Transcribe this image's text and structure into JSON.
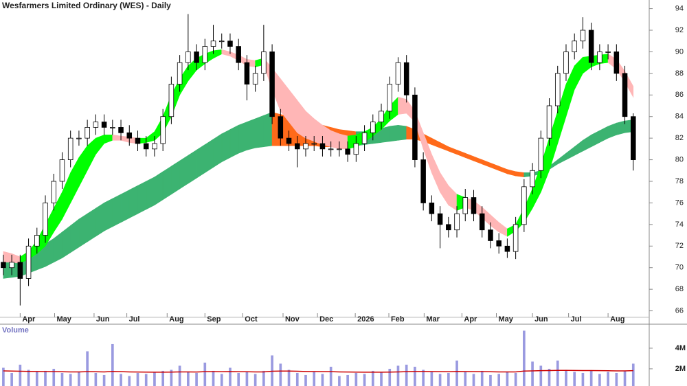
{
  "chart_data": [
    {
      "type": "candlestick",
      "title": "Wesfarmers Limited Ordinary (WES) - Daily",
      "xlim": [
        -0.4,
        76.9
      ],
      "ylim": [
        65.4,
        94.8
      ],
      "yticks": [
        66,
        68,
        70,
        72,
        74,
        76,
        78,
        80,
        82,
        84,
        86,
        88,
        90,
        92,
        94
      ],
      "xticks": [
        {
          "value": 2.0,
          "label": "Apr"
        },
        {
          "value": 6.1,
          "label": "May"
        },
        {
          "value": 10.8,
          "label": "Jun"
        },
        {
          "value": 14.7,
          "label": "Jul"
        },
        {
          "value": 19.5,
          "label": "Aug"
        },
        {
          "value": 24.0,
          "label": "Sep"
        },
        {
          "value": 28.5,
          "label": "Oct"
        },
        {
          "value": 33.3,
          "label": "Nov"
        },
        {
          "value": 37.4,
          "label": "Dec"
        },
        {
          "value": 41.9,
          "label": "2026"
        },
        {
          "value": 45.9,
          "label": "Feb"
        },
        {
          "value": 50.1,
          "label": "Mar"
        },
        {
          "value": 54.6,
          "label": "Apr"
        },
        {
          "value": 58.7,
          "label": "May"
        },
        {
          "value": 63.0,
          "label": "Jun"
        },
        {
          "value": 67.3,
          "label": "Jul"
        },
        {
          "value": 72.0,
          "label": "Aug"
        }
      ],
      "up_color": "#ffffff",
      "down_color": "#000000",
      "outline_color": "#000000",
      "open": [
        70.5,
        70,
        70.5,
        69,
        72,
        73,
        76,
        78,
        80,
        82,
        82,
        83,
        83.5,
        83,
        83,
        82.5,
        82,
        81.5,
        81,
        81.5,
        84,
        87,
        89,
        90,
        89,
        90.5,
        91,
        91,
        90.5,
        89,
        87,
        88,
        90,
        84,
        82,
        81.5,
        81,
        81.5,
        81.5,
        81,
        81,
        81,
        80.5,
        81.5,
        82.5,
        83.5,
        84.5,
        87,
        89,
        86,
        80,
        76,
        75,
        74,
        73.5,
        75,
        76.5,
        75,
        73.5,
        72.5,
        72,
        71.5,
        74,
        77.5,
        79,
        82,
        85,
        88,
        90,
        91,
        92,
        89,
        90,
        90,
        88,
        84
      ],
      "high": [
        71.2,
        71.2,
        71.2,
        72.7,
        73.7,
        76.7,
        78.7,
        80.7,
        82.7,
        82.7,
        83.7,
        84.2,
        84.2,
        83.7,
        83.7,
        83.2,
        82.7,
        82.2,
        82.2,
        84.7,
        87.7,
        89.7,
        93.5,
        90.7,
        91.2,
        92.5,
        91.7,
        91.7,
        91.2,
        89.7,
        88.7,
        92.5,
        90.7,
        84.7,
        82.7,
        82.2,
        82.2,
        82.2,
        82.2,
        81.7,
        81.7,
        81.7,
        82.2,
        83.2,
        84.2,
        85.2,
        87.7,
        89.5,
        89.7,
        86.7,
        80.7,
        76.7,
        75.7,
        74.7,
        75.7,
        77.3,
        77.2,
        75.7,
        74.2,
        73.2,
        72.7,
        74.7,
        78.2,
        79.7,
        82.7,
        85.7,
        88.7,
        90.7,
        91.7,
        93.2,
        92.7,
        90.7,
        90.7,
        90.7,
        88.7,
        84.3
      ],
      "low": [
        69.3,
        69.3,
        66.5,
        68.3,
        71.3,
        72.3,
        75.3,
        77.3,
        79.3,
        81.3,
        81.3,
        82.3,
        82.3,
        82.3,
        81.8,
        81.3,
        80.8,
        80.3,
        80.3,
        80.8,
        83.3,
        86.3,
        88.3,
        88.3,
        88.3,
        89.8,
        90.3,
        89.8,
        88.3,
        85.5,
        86.3,
        87.3,
        83.3,
        81.3,
        80.8,
        79.3,
        80.3,
        80.8,
        80.3,
        80.3,
        80.3,
        79.8,
        79.8,
        80.8,
        81.8,
        82.8,
        83.8,
        86.3,
        85.3,
        79.3,
        75.3,
        74.3,
        71.8,
        72.8,
        72.8,
        74.3,
        74.3,
        72.8,
        71.8,
        71.3,
        70.9,
        70.8,
        73.3,
        76.8,
        78.3,
        81.3,
        84.3,
        87.3,
        89.3,
        90.3,
        88.3,
        88.3,
        89.3,
        87.3,
        83.3,
        79
      ],
      "close": [
        70,
        70.5,
        69,
        72,
        73,
        76,
        78,
        80,
        82,
        82,
        83,
        83.5,
        83,
        83,
        82.5,
        82,
        81.5,
        81,
        81.5,
        84,
        87,
        89,
        90,
        89,
        90.5,
        91,
        91,
        90.5,
        89,
        87,
        88,
        90,
        84,
        82,
        81.5,
        81,
        81.5,
        81.5,
        81,
        81,
        81,
        80.5,
        81.5,
        82.5,
        83.5,
        84.5,
        87,
        89,
        86,
        80,
        76,
        75,
        74,
        73.5,
        75,
        76.5,
        75,
        73.5,
        72.5,
        72,
        71.5,
        74,
        77.5,
        79,
        82,
        85,
        88,
        90,
        91,
        92,
        89,
        90,
        90,
        88,
        84,
        80
      ],
      "ribbons": [
        {
          "color_up": "#3cb371",
          "color_down": "#ff6a1a",
          "upper": [
            70.8,
            70.9,
            71,
            71.3,
            71.7,
            72.2,
            72.7,
            73.3,
            73.9,
            74.5,
            75,
            75.5,
            76,
            76.4,
            76.8,
            77.2,
            77.6,
            78,
            78.4,
            78.9,
            79.4,
            79.9,
            80.4,
            80.9,
            81.4,
            81.9,
            82.4,
            82.8,
            83.2,
            83.5,
            83.8,
            84.1,
            84.4,
            84.2,
            84,
            83.8,
            83.6,
            83.4,
            83.2,
            83,
            82.8,
            82.7,
            82.6,
            82.6,
            82.7,
            82.9,
            83.1,
            83.2,
            83.1,
            82.8,
            82.4,
            82,
            81.6,
            81.2,
            80.9,
            80.6,
            80.3,
            80,
            79.7,
            79.4,
            79.1,
            78.9,
            78.8,
            78.8,
            79,
            79.4,
            80,
            80.6,
            81.2,
            81.8,
            82.3,
            82.7,
            83.1,
            83.4,
            83.6,
            83.7
          ],
          "lower": [
            69,
            69.1,
            69.2,
            69.5,
            69.8,
            70.1,
            70.5,
            70.9,
            71.4,
            71.9,
            72.4,
            72.9,
            73.4,
            73.8,
            74.2,
            74.6,
            75,
            75.4,
            75.8,
            76.3,
            76.8,
            77.3,
            77.8,
            78.3,
            78.8,
            79.3,
            79.8,
            80.2,
            80.6,
            80.9,
            81.1,
            81.2,
            81.3,
            81.3,
            81.3,
            81.3,
            81.3,
            81.3,
            81.2,
            81.2,
            81.2,
            81.2,
            81.3,
            81.4,
            81.5,
            81.6,
            81.7,
            81.8,
            81.9,
            81.9,
            81.7,
            81.4,
            81.1,
            80.8,
            80.5,
            80.2,
            79.9,
            79.6,
            79.3,
            79,
            78.7,
            78.5,
            78.4,
            78.5,
            78.7,
            79.1,
            79.6,
            80,
            80.4,
            80.8,
            81.2,
            81.6,
            82,
            82.3,
            82.5,
            82.6
          ]
        },
        {
          "color_up": "#00ff00",
          "color_down": "#ffb6b6",
          "upper": [
            71.5,
            71.3,
            71,
            71.5,
            72.5,
            74,
            75.5,
            77,
            78.8,
            80.2,
            81.3,
            82,
            82.3,
            82.3,
            82.2,
            82.1,
            82,
            82,
            82.6,
            84,
            86,
            87.5,
            88.7,
            89.4,
            89.8,
            90.1,
            90.2,
            90,
            89.7,
            89.3,
            89.2,
            89.4,
            88.5,
            87.5,
            86.5,
            85.5,
            84.5,
            83.8,
            83.2,
            82.7,
            82.4,
            82.2,
            82.3,
            82.6,
            83,
            83.8,
            85,
            85.8,
            85.6,
            84.5,
            82.5,
            80.5,
            78.8,
            77.6,
            76.8,
            76.5,
            76.2,
            75.6,
            74.9,
            74.2,
            73.6,
            74,
            75.5,
            77.3,
            79.5,
            82,
            84.5,
            87,
            88.7,
            89.5,
            89.6,
            89.7,
            89.8,
            89.3,
            88.2,
            86.8
          ],
          "lower": [
            70.5,
            70.5,
            70.4,
            70.8,
            71.3,
            72,
            73.3,
            74.5,
            76,
            77.5,
            79,
            80.5,
            81.5,
            81.8,
            81.8,
            81.6,
            81.5,
            81.6,
            81.8,
            82.5,
            84,
            86,
            87.3,
            88.3,
            88.9,
            89.4,
            89.8,
            89.6,
            89.2,
            88.7,
            88.6,
            88.8,
            86.5,
            84.5,
            83.5,
            82.5,
            82,
            81.7,
            81.4,
            81.2,
            81,
            81,
            81.2,
            81.6,
            82.2,
            82.8,
            83.6,
            84.2,
            84.3,
            83.5,
            81,
            78.8,
            77,
            75.8,
            75.3,
            75.6,
            75.3,
            74.6,
            73.9,
            73.3,
            72.9,
            73.4,
            74.2,
            75.5,
            77,
            79,
            81.5,
            84,
            86.5,
            88,
            88.6,
            88.9,
            89,
            88.4,
            87.2,
            85.8
          ]
        }
      ]
    },
    {
      "type": "bar",
      "title": "Volume",
      "color": "#9a9ae0",
      "xlim": [
        -0.4,
        76.9
      ],
      "ylim": [
        330000,
        6330000
      ],
      "yticks": [
        {
          "value": 2000000,
          "label": "2M"
        },
        {
          "value": 4000000,
          "label": "4M"
        }
      ],
      "values": [
        2100000,
        1600000,
        2400000,
        1900000,
        1700000,
        1800000,
        2000000,
        1600000,
        1500000,
        1700000,
        3700000,
        1600000,
        1400000,
        4400000,
        1500000,
        1300000,
        1600000,
        1500000,
        1700000,
        1800000,
        1900000,
        2300000,
        1700000,
        1600000,
        2600000,
        1800000,
        1500000,
        2100000,
        1600000,
        1700000,
        1500000,
        1800000,
        3300000,
        2500000,
        1900000,
        1600000,
        1400000,
        1700000,
        1500000,
        2200000,
        1300000,
        1400000,
        1600000,
        1500000,
        1800000,
        1700000,
        2000000,
        2300000,
        2400000,
        2200000,
        1900000,
        1700000,
        1500000,
        1600000,
        2800000,
        1700000,
        1500000,
        1800000,
        1400000,
        1500000,
        1700000,
        1600000,
        5700000,
        2700000,
        2300000,
        2000000,
        2800000,
        1900000,
        1700000,
        1600000,
        1800000,
        1500000,
        1700000,
        1600000,
        1800000,
        2500000
      ],
      "average": {
        "color": "#cc0000",
        "values": [
          1800000,
          1780000,
          1760000,
          1750000,
          1740000,
          1730000,
          1720000,
          1710000,
          1700000,
          1700000,
          1720000,
          1710000,
          1700000,
          1740000,
          1720000,
          1700000,
          1690000,
          1680000,
          1670000,
          1670000,
          1680000,
          1700000,
          1700000,
          1690000,
          1720000,
          1720000,
          1710000,
          1720000,
          1710000,
          1710000,
          1700000,
          1700000,
          1760000,
          1780000,
          1780000,
          1760000,
          1740000,
          1730000,
          1720000,
          1720000,
          1700000,
          1690000,
          1680000,
          1670000,
          1670000,
          1670000,
          1680000,
          1700000,
          1720000,
          1740000,
          1740000,
          1730000,
          1720000,
          1710000,
          1740000,
          1730000,
          1720000,
          1720000,
          1710000,
          1700000,
          1700000,
          1700000,
          1780000,
          1800000,
          1820000,
          1830000,
          1850000,
          1850000,
          1840000,
          1830000,
          1830000,
          1820000,
          1810000,
          1800000,
          1800000,
          1820000
        ]
      }
    }
  ]
}
